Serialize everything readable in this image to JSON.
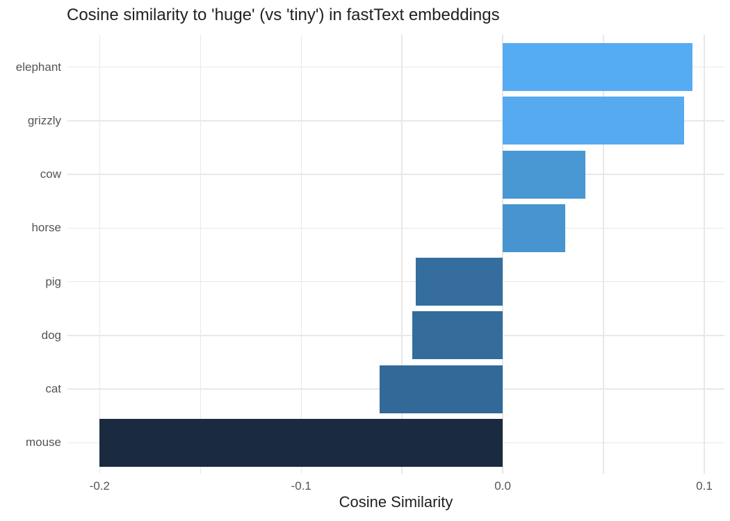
{
  "chart_data": {
    "type": "bar",
    "orientation": "horizontal",
    "title": "Cosine similarity to 'huge' (vs 'tiny') in fastText embeddings",
    "xlabel": "Cosine Similarity",
    "ylabel": "",
    "categories": [
      "elephant",
      "grizzly",
      "cow",
      "horse",
      "pig",
      "dog",
      "cat",
      "mouse"
    ],
    "values": [
      0.094,
      0.09,
      0.041,
      0.031,
      -0.043,
      -0.045,
      -0.061,
      -0.2
    ],
    "bar_colors": [
      "#56acf2",
      "#55aaf0",
      "#4997d3",
      "#4794d0",
      "#356e9e",
      "#346c9c",
      "#326998",
      "#1a2b40"
    ],
    "xlim": [
      -0.216,
      0.11
    ],
    "x_tick_values": [
      -0.2,
      -0.1,
      0.0,
      0.1
    ],
    "x_tick_labels": [
      "-0.2",
      "-0.1",
      "0.0",
      "0.1"
    ],
    "x_grid_values": [
      -0.2,
      -0.15,
      -0.1,
      -0.05,
      0.0,
      0.05,
      0.1
    ],
    "grid": true,
    "legend": false,
    "colors": {
      "background": "#ffffff",
      "gridline": "#e8e8e8",
      "tick_label": "#545454",
      "title_text": "#212121"
    }
  }
}
